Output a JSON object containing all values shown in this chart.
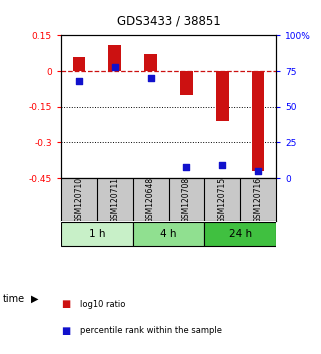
{
  "title": "GDS3433 / 38851",
  "samples": [
    "GSM120710",
    "GSM120711",
    "GSM120648",
    "GSM120708",
    "GSM120715",
    "GSM120716"
  ],
  "log10_ratio": [
    0.06,
    0.11,
    0.07,
    -0.1,
    -0.21,
    -0.42
  ],
  "percentile_rank": [
    68,
    78,
    70,
    8,
    9,
    5
  ],
  "time_groups": [
    {
      "label": "1 h",
      "start": 0,
      "end": 2,
      "color": "#c8f0c8"
    },
    {
      "label": "4 h",
      "start": 2,
      "end": 4,
      "color": "#90e090"
    },
    {
      "label": "24 h",
      "start": 4,
      "end": 6,
      "color": "#40c040"
    }
  ],
  "ylim_left": [
    -0.45,
    0.15
  ],
  "ylim_right": [
    0,
    100
  ],
  "yticks_left": [
    0.15,
    0,
    -0.15,
    -0.3,
    -0.45
  ],
  "yticks_right": [
    100,
    75,
    50,
    25,
    0
  ],
  "bar_color": "#cc1111",
  "dot_color": "#1111cc",
  "bar_width": 0.35,
  "dot_size": 22,
  "background_color": "#ffffff",
  "panel_bg": "#ffffff",
  "sample_panel_color": "#c8c8c8",
  "legend_labels": [
    "log10 ratio",
    "percentile rank within the sample"
  ]
}
